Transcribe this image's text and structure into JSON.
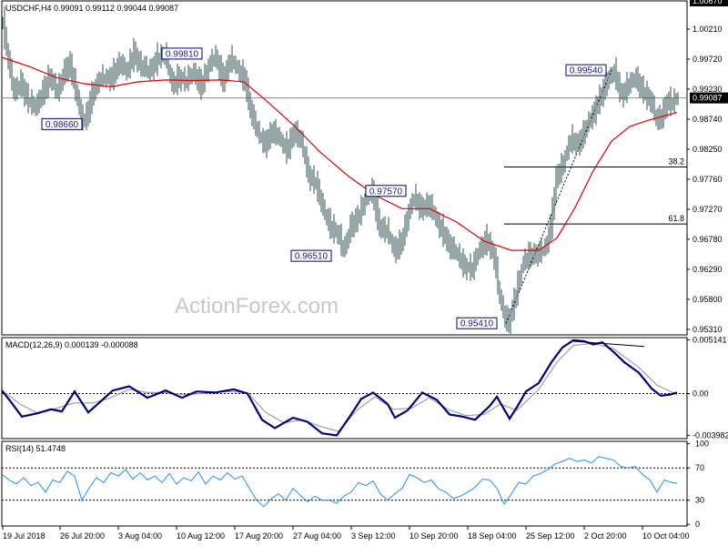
{
  "colors": {
    "background": "#ffffff",
    "bar": "#2f4f4f",
    "ma": "#e00000",
    "macd_main": "#000080",
    "macd_signal": "#a0a0a0",
    "rsi": "#1e90ff",
    "grid_line": "#000000",
    "annotation_border": "#000080",
    "price_highlight_bg": "#000000",
    "price_highlight_fg": "#ffffff"
  },
  "chart_data": [
    {
      "type": "ohlc",
      "title": "USDCHF,H4  0.99091 0.99112 0.99044 0.99087",
      "symbol": "USDCHF",
      "timeframe": "H4",
      "last_ohlc": {
        "open": 0.99091,
        "high": 0.99112,
        "low": 0.99044,
        "close": 0.99087
      },
      "current_price": 0.99087,
      "current_price_label": "0.99087",
      "ylim": [
        0.9522,
        1.0067
      ],
      "top_price_label": "1.00670",
      "y_ticks": [
        "1.00210",
        "0.99720",
        "0.99230",
        "0.98740",
        "0.98250",
        "0.97760",
        "0.97270",
        "0.96780",
        "0.96290",
        "0.95800",
        "0.95310"
      ],
      "y_tick_values": [
        1.0021,
        0.9972,
        0.9923,
        0.9874,
        0.9825,
        0.9776,
        0.9727,
        0.9678,
        0.9629,
        0.958,
        0.9531
      ],
      "x_tick_labels": [
        "19 Jul 2018",
        "26 Jul 20:00",
        "3 Aug 04:00",
        "10 Aug 12:00",
        "17 Aug 20:00",
        "27 Aug 04:00",
        "3 Sep 12:00",
        "10 Sep 20:00",
        "18 Sep 04:00",
        "25 Sep 12:00",
        "2 Oct 20:00",
        "10 Oct 04:00"
      ],
      "annotations": [
        {
          "label": "0.98660",
          "value": 0.9866
        },
        {
          "label": "0.99810",
          "value": 0.9981
        },
        {
          "label": "0.96510",
          "value": 0.9651
        },
        {
          "label": "0.97570",
          "value": 0.9757
        },
        {
          "label": "0.95410",
          "value": 0.9541
        },
        {
          "label": "0.99540",
          "value": 0.9954
        }
      ],
      "fibonacci": [
        {
          "label": "38.2",
          "value": 0.9796
        },
        {
          "label": "61.8",
          "value": 0.9703
        }
      ],
      "price_path": [
        [
          0,
          1.0035
        ],
        [
          4,
          0.999
        ],
        [
          12,
          0.9915
        ],
        [
          20,
          0.9935
        ],
        [
          28,
          0.9905
        ],
        [
          36,
          0.989
        ],
        [
          44,
          0.992
        ],
        [
          52,
          0.9945
        ],
        [
          60,
          0.9915
        ],
        [
          68,
          0.9955
        ],
        [
          74,
          0.9965
        ],
        [
          82,
          0.9905
        ],
        [
          88,
          0.987
        ],
        [
          92,
          0.988
        ],
        [
          98,
          0.9915
        ],
        [
          105,
          0.9935
        ],
        [
          112,
          0.994
        ],
        [
          120,
          0.9945
        ],
        [
          128,
          0.9965
        ],
        [
          136,
          0.995
        ],
        [
          144,
          0.9985
        ],
        [
          152,
          0.996
        ],
        [
          160,
          0.995
        ],
        [
          170,
          0.9975
        ],
        [
          178,
          0.9981
        ],
        [
          186,
          0.993
        ],
        [
          194,
          0.9945
        ],
        [
          202,
          0.9935
        ],
        [
          210,
          0.995
        ],
        [
          218,
          0.993
        ],
        [
          226,
          0.996
        ],
        [
          234,
          0.9975
        ],
        [
          242,
          0.994
        ],
        [
          250,
          0.997
        ],
        [
          258,
          0.9955
        ],
        [
          266,
          0.994
        ],
        [
          272,
          0.989
        ],
        [
          280,
          0.985
        ],
        [
          288,
          0.9835
        ],
        [
          296,
          0.9855
        ],
        [
          304,
          0.984
        ],
        [
          312,
          0.9825
        ],
        [
          320,
          0.9855
        ],
        [
          328,
          0.9835
        ],
        [
          336,
          0.9785
        ],
        [
          344,
          0.977
        ],
        [
          352,
          0.9725
        ],
        [
          360,
          0.97
        ],
        [
          368,
          0.969
        ],
        [
          375,
          0.9655
        ],
        [
          382,
          0.97
        ],
        [
          390,
          0.9715
        ],
        [
          398,
          0.974
        ],
        [
          406,
          0.9757
        ],
        [
          414,
          0.97
        ],
        [
          422,
          0.969
        ],
        [
          430,
          0.966
        ],
        [
          438,
          0.9675
        ],
        [
          446,
          0.972
        ],
        [
          452,
          0.9745
        ],
        [
          460,
          0.973
        ],
        [
          468,
          0.9735
        ],
        [
          476,
          0.971
        ],
        [
          484,
          0.969
        ],
        [
          492,
          0.9665
        ],
        [
          500,
          0.965
        ],
        [
          508,
          0.9635
        ],
        [
          516,
          0.963
        ],
        [
          524,
          0.966
        ],
        [
          532,
          0.968
        ],
        [
          540,
          0.965
        ],
        [
          546,
          0.958
        ],
        [
          552,
          0.955
        ],
        [
          556,
          0.9545
        ],
        [
          564,
          0.959
        ],
        [
          572,
          0.964
        ],
        [
          580,
          0.9655
        ],
        [
          588,
          0.9655
        ],
        [
          596,
          0.966
        ],
        [
          602,
          0.97
        ],
        [
          608,
          0.978
        ],
        [
          616,
          0.98
        ],
        [
          624,
          0.984
        ],
        [
          632,
          0.9835
        ],
        [
          640,
          0.9855
        ],
        [
          648,
          0.988
        ],
        [
          656,
          0.991
        ],
        [
          664,
          0.9935
        ],
        [
          672,
          0.995
        ],
        [
          680,
          0.9915
        ],
        [
          688,
          0.993
        ],
        [
          696,
          0.994
        ],
        [
          704,
          0.992
        ],
        [
          712,
          0.9905
        ],
        [
          718,
          0.987
        ],
        [
          724,
          0.988
        ],
        [
          730,
          0.9905
        ],
        [
          736,
          0.99
        ],
        [
          742,
          0.9909
        ]
      ],
      "ma_path": [
        [
          0,
          0.9975
        ],
        [
          30,
          0.996
        ],
        [
          60,
          0.9942
        ],
        [
          90,
          0.9932
        ],
        [
          120,
          0.9927
        ],
        [
          150,
          0.9935
        ],
        [
          180,
          0.9938
        ],
        [
          210,
          0.9937
        ],
        [
          240,
          0.9938
        ],
        [
          266,
          0.9935
        ],
        [
          290,
          0.9905
        ],
        [
          320,
          0.9865
        ],
        [
          350,
          0.982
        ],
        [
          380,
          0.9782
        ],
        [
          410,
          0.975
        ],
        [
          440,
          0.9728
        ],
        [
          470,
          0.9728
        ],
        [
          500,
          0.9706
        ],
        [
          530,
          0.9675
        ],
        [
          560,
          0.966
        ],
        [
          590,
          0.966
        ],
        [
          610,
          0.968
        ],
        [
          630,
          0.973
        ],
        [
          650,
          0.979
        ],
        [
          670,
          0.9838
        ],
        [
          690,
          0.9862
        ],
        [
          710,
          0.9872
        ],
        [
          742,
          0.9885
        ]
      ]
    },
    {
      "type": "line",
      "title": "MACD(12,26,9) 0.000139 -0.000088",
      "name": "MACD",
      "value_main": 0.000139,
      "value_signal": -8.8e-05,
      "ylim": [
        -0.0043,
        0.00535
      ],
      "y_ticks": [
        "0.005141",
        "0.00",
        "-0.003982"
      ],
      "y_tick_values": [
        0.005141,
        0.0,
        -0.003982
      ],
      "main_path": [
        [
          0,
          0.0003
        ],
        [
          10,
          -0.0008
        ],
        [
          22,
          -0.0022
        ],
        [
          38,
          -0.0019
        ],
        [
          54,
          -0.0015
        ],
        [
          66,
          -0.0017
        ],
        [
          80,
          0.0002
        ],
        [
          95,
          -0.0018
        ],
        [
          108,
          -0.0008
        ],
        [
          122,
          0.0003
        ],
        [
          140,
          0.0007
        ],
        [
          160,
          -0.0004
        ],
        [
          180,
          0.0003
        ],
        [
          198,
          -0.0004
        ],
        [
          214,
          0.0002
        ],
        [
          234,
          0.0001
        ],
        [
          255,
          0.0004
        ],
        [
          270,
          0.0
        ],
        [
          286,
          -0.0025
        ],
        [
          300,
          -0.0033
        ],
        [
          320,
          -0.0023
        ],
        [
          336,
          -0.0027
        ],
        [
          352,
          -0.0038
        ],
        [
          368,
          -0.004
        ],
        [
          380,
          -0.0025
        ],
        [
          395,
          -0.0005
        ],
        [
          408,
          0.0001
        ],
        [
          424,
          -0.001
        ],
        [
          432,
          -0.0023
        ],
        [
          446,
          -0.0016
        ],
        [
          462,
          0.0001
        ],
        [
          478,
          -0.0006
        ],
        [
          492,
          -0.002
        ],
        [
          506,
          -0.0022
        ],
        [
          520,
          -0.0025
        ],
        [
          536,
          -0.0012
        ],
        [
          544,
          -0.0003
        ],
        [
          558,
          -0.0024
        ],
        [
          566,
          -0.0013
        ],
        [
          576,
          0.0002
        ],
        [
          590,
          0.001
        ],
        [
          604,
          0.003
        ],
        [
          616,
          0.0044
        ],
        [
          628,
          0.0051
        ],
        [
          640,
          0.005
        ],
        [
          650,
          0.0047
        ],
        [
          660,
          0.0049
        ],
        [
          672,
          0.004
        ],
        [
          684,
          0.003
        ],
        [
          700,
          0.002
        ],
        [
          714,
          0.0005
        ],
        [
          724,
          -0.0002
        ],
        [
          734,
          -0.0001
        ],
        [
          742,
          0.0001
        ]
      ],
      "signal_path": [
        [
          0,
          0.0003
        ],
        [
          20,
          -0.001
        ],
        [
          40,
          -0.0019
        ],
        [
          60,
          -0.0014
        ],
        [
          80,
          -0.0009
        ],
        [
          100,
          -0.0009
        ],
        [
          120,
          -0.0004
        ],
        [
          140,
          0.0004
        ],
        [
          160,
          0.0001
        ],
        [
          180,
          0.0001
        ],
        [
          200,
          -0.0001
        ],
        [
          220,
          0.0
        ],
        [
          245,
          0.0002
        ],
        [
          270,
          0.0001
        ],
        [
          290,
          -0.0018
        ],
        [
          310,
          -0.0028
        ],
        [
          330,
          -0.0025
        ],
        [
          352,
          -0.0032
        ],
        [
          370,
          -0.0036
        ],
        [
          390,
          -0.0016
        ],
        [
          410,
          -0.0003
        ],
        [
          430,
          -0.0015
        ],
        [
          450,
          -0.0014
        ],
        [
          470,
          -0.0004
        ],
        [
          490,
          -0.0015
        ],
        [
          510,
          -0.0021
        ],
        [
          530,
          -0.002
        ],
        [
          548,
          -0.001
        ],
        [
          566,
          -0.0016
        ],
        [
          590,
          0.0004
        ],
        [
          610,
          0.003
        ],
        [
          628,
          0.0046
        ],
        [
          650,
          0.0048
        ],
        [
          672,
          0.0043
        ],
        [
          700,
          0.0025
        ],
        [
          720,
          0.0008
        ],
        [
          742,
          -0.0001
        ]
      ],
      "trendline": [
        [
          628,
          0.005
        ],
        [
          706,
          0.0045
        ]
      ]
    },
    {
      "type": "line",
      "title": "RSI(14) 51.4748",
      "name": "RSI",
      "value": 51.4748,
      "ylim": [
        -2,
        103
      ],
      "y_ticks": [
        "100",
        "70",
        "30",
        "0"
      ],
      "y_tick_values": [
        100,
        70,
        30,
        0
      ],
      "rsi_path": [
        [
          0,
          62
        ],
        [
          8,
          55
        ],
        [
          16,
          50
        ],
        [
          24,
          58
        ],
        [
          32,
          48
        ],
        [
          40,
          52
        ],
        [
          48,
          40
        ],
        [
          56,
          55
        ],
        [
          64,
          52
        ],
        [
          72,
          66
        ],
        [
          80,
          60
        ],
        [
          88,
          30
        ],
        [
          96,
          45
        ],
        [
          104,
          58
        ],
        [
          112,
          52
        ],
        [
          120,
          64
        ],
        [
          128,
          60
        ],
        [
          136,
          68
        ],
        [
          144,
          56
        ],
        [
          152,
          64
        ],
        [
          160,
          55
        ],
        [
          168,
          60
        ],
        [
          176,
          52
        ],
        [
          184,
          63
        ],
        [
          192,
          50
        ],
        [
          200,
          58
        ],
        [
          208,
          54
        ],
        [
          216,
          65
        ],
        [
          224,
          50
        ],
        [
          232,
          60
        ],
        [
          240,
          55
        ],
        [
          248,
          64
        ],
        [
          256,
          56
        ],
        [
          264,
          60
        ],
        [
          272,
          45
        ],
        [
          280,
          30
        ],
        [
          288,
          22
        ],
        [
          296,
          32
        ],
        [
          304,
          38
        ],
        [
          312,
          30
        ],
        [
          320,
          45
        ],
        [
          328,
          36
        ],
        [
          336,
          28
        ],
        [
          344,
          35
        ],
        [
          352,
          30
        ],
        [
          360,
          30
        ],
        [
          368,
          26
        ],
        [
          376,
          35
        ],
        [
          384,
          40
        ],
        [
          392,
          52
        ],
        [
          400,
          48
        ],
        [
          408,
          54
        ],
        [
          416,
          38
        ],
        [
          424,
          30
        ],
        [
          432,
          38
        ],
        [
          440,
          45
        ],
        [
          448,
          62
        ],
        [
          456,
          58
        ],
        [
          464,
          52
        ],
        [
          472,
          55
        ],
        [
          480,
          44
        ],
        [
          488,
          40
        ],
        [
          496,
          32
        ],
        [
          504,
          35
        ],
        [
          512,
          40
        ],
        [
          520,
          46
        ],
        [
          528,
          56
        ],
        [
          536,
          55
        ],
        [
          544,
          45
        ],
        [
          552,
          25
        ],
        [
          560,
          38
        ],
        [
          568,
          52
        ],
        [
          576,
          50
        ],
        [
          584,
          60
        ],
        [
          592,
          63
        ],
        [
          600,
          68
        ],
        [
          608,
          75
        ],
        [
          616,
          78
        ],
        [
          624,
          82
        ],
        [
          632,
          78
        ],
        [
          640,
          80
        ],
        [
          648,
          76
        ],
        [
          656,
          84
        ],
        [
          664,
          82
        ],
        [
          672,
          80
        ],
        [
          680,
          72
        ],
        [
          688,
          70
        ],
        [
          696,
          72
        ],
        [
          704,
          62
        ],
        [
          712,
          55
        ],
        [
          720,
          40
        ],
        [
          728,
          55
        ],
        [
          736,
          52
        ],
        [
          742,
          51
        ]
      ]
    }
  ],
  "watermark": "ActionForex.com"
}
